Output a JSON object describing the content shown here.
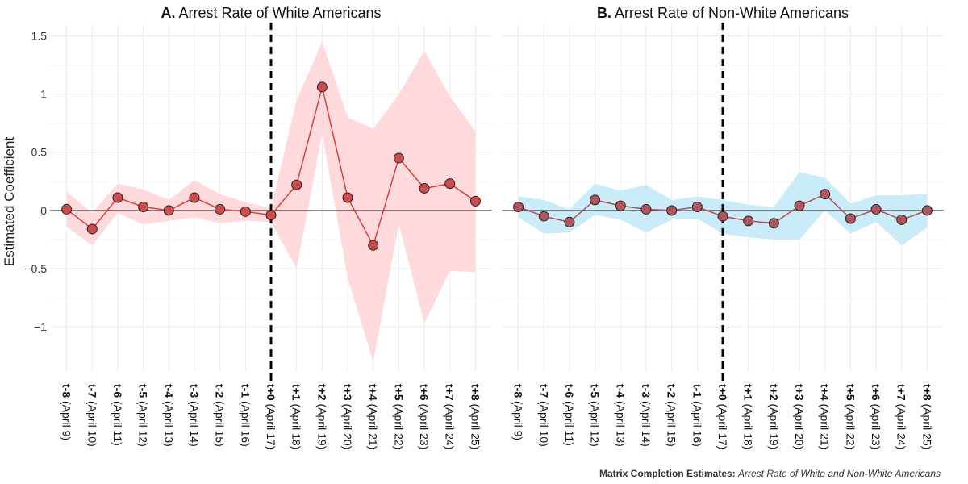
{
  "y_axis_label": "Estimated Coefficient",
  "caption": {
    "bold": "Matrix Completion Estimates:",
    "italic": "Arrest Rate of White and Non-White Americans"
  },
  "colors": {
    "panel_a_ribbon": "#ffdadd",
    "panel_a_line": "#e03c3c",
    "panel_a_point": "#cf4a4a",
    "panel_b_ribbon": "#c9ecf8",
    "panel_b_line": "#b0505a",
    "panel_b_point": "#b0545e",
    "zero_line": "#444444",
    "grid": "#ebebeb"
  },
  "chart_data": [
    {
      "type": "line",
      "panel": "A.",
      "title": "Arrest Rate of White Americans",
      "categories": [
        {
          "t": "t-8",
          "date": "(April 9)"
        },
        {
          "t": "t-7",
          "date": "(April 10)"
        },
        {
          "t": "t-6",
          "date": "(April 11)"
        },
        {
          "t": "t-5",
          "date": "(April 12)"
        },
        {
          "t": "t-4",
          "date": "(April 13)"
        },
        {
          "t": "t-3",
          "date": "(April 14)"
        },
        {
          "t": "t-2",
          "date": "(April 15)"
        },
        {
          "t": "t-1",
          "date": "(April 16)"
        },
        {
          "t": "t+0",
          "date": "(April 17)"
        },
        {
          "t": "t+1",
          "date": "(April 18)"
        },
        {
          "t": "t+2",
          "date": "(April 19)"
        },
        {
          "t": "t+3",
          "date": "(April 20)"
        },
        {
          "t": "t+4",
          "date": "(April 21)"
        },
        {
          "t": "t+5",
          "date": "(April 22)"
        },
        {
          "t": "t+6",
          "date": "(April 23)"
        },
        {
          "t": "t+7",
          "date": "(April 24)"
        },
        {
          "t": "t+8",
          "date": "(April 25)"
        }
      ],
      "estimate": [
        0.01,
        -0.16,
        0.11,
        0.03,
        0.0,
        0.11,
        0.01,
        -0.01,
        -0.04,
        0.22,
        1.06,
        0.11,
        -0.3,
        0.45,
        0.19,
        0.23,
        0.08
      ],
      "lower": [
        -0.14,
        -0.3,
        -0.02,
        -0.12,
        -0.09,
        -0.06,
        -0.11,
        -0.09,
        -0.1,
        -0.5,
        0.66,
        -0.58,
        -1.3,
        -0.12,
        -0.97,
        -0.52,
        -0.53
      ],
      "upper": [
        0.16,
        -0.02,
        0.23,
        0.18,
        0.09,
        0.26,
        0.14,
        0.07,
        0.02,
        0.95,
        1.45,
        0.8,
        0.7,
        1.0,
        1.37,
        0.98,
        0.68
      ],
      "vline_at": "t+0",
      "yticks": [
        -1,
        -0.5,
        0,
        0.5,
        1,
        1.5
      ],
      "ylim": [
        -1.38,
        1.6
      ]
    },
    {
      "type": "line",
      "panel": "B.",
      "title": "Arrest Rate of Non-White Americans",
      "categories": [
        {
          "t": "t-8",
          "date": "(April 9)"
        },
        {
          "t": "t-7",
          "date": "(April 10)"
        },
        {
          "t": "t-6",
          "date": "(April 11)"
        },
        {
          "t": "t-5",
          "date": "(April 12)"
        },
        {
          "t": "t-4",
          "date": "(April 13)"
        },
        {
          "t": "t-3",
          "date": "(April 14)"
        },
        {
          "t": "t-2",
          "date": "(April 15)"
        },
        {
          "t": "t-1",
          "date": "(April 16)"
        },
        {
          "t": "t+0",
          "date": "(April 17)"
        },
        {
          "t": "t+1",
          "date": "(April 18)"
        },
        {
          "t": "t+2",
          "date": "(April 19)"
        },
        {
          "t": "t+3",
          "date": "(April 20)"
        },
        {
          "t": "t+4",
          "date": "(April 21)"
        },
        {
          "t": "t+5",
          "date": "(April 22)"
        },
        {
          "t": "t+6",
          "date": "(April 23)"
        },
        {
          "t": "t+7",
          "date": "(April 24)"
        },
        {
          "t": "t+8",
          "date": "(April 25)"
        }
      ],
      "estimate": [
        0.03,
        -0.05,
        -0.1,
        0.09,
        0.04,
        0.01,
        0.0,
        0.03,
        -0.05,
        -0.09,
        -0.11,
        0.04,
        0.14,
        -0.07,
        0.01,
        -0.08,
        0.0
      ],
      "lower": [
        -0.06,
        -0.2,
        -0.19,
        -0.04,
        -0.08,
        -0.19,
        -0.08,
        -0.07,
        -0.2,
        -0.23,
        -0.25,
        -0.25,
        0.0,
        -0.2,
        -0.1,
        -0.3,
        -0.15
      ],
      "upper": [
        0.12,
        0.09,
        0.01,
        0.23,
        0.17,
        0.22,
        0.09,
        0.12,
        0.09,
        0.05,
        0.03,
        0.33,
        0.28,
        0.06,
        0.13,
        0.13,
        0.14
      ],
      "vline_at": "t+0",
      "yticks": [
        -1,
        -0.5,
        0,
        0.5,
        1,
        1.5
      ],
      "ylim": [
        -1.38,
        1.6
      ]
    }
  ]
}
